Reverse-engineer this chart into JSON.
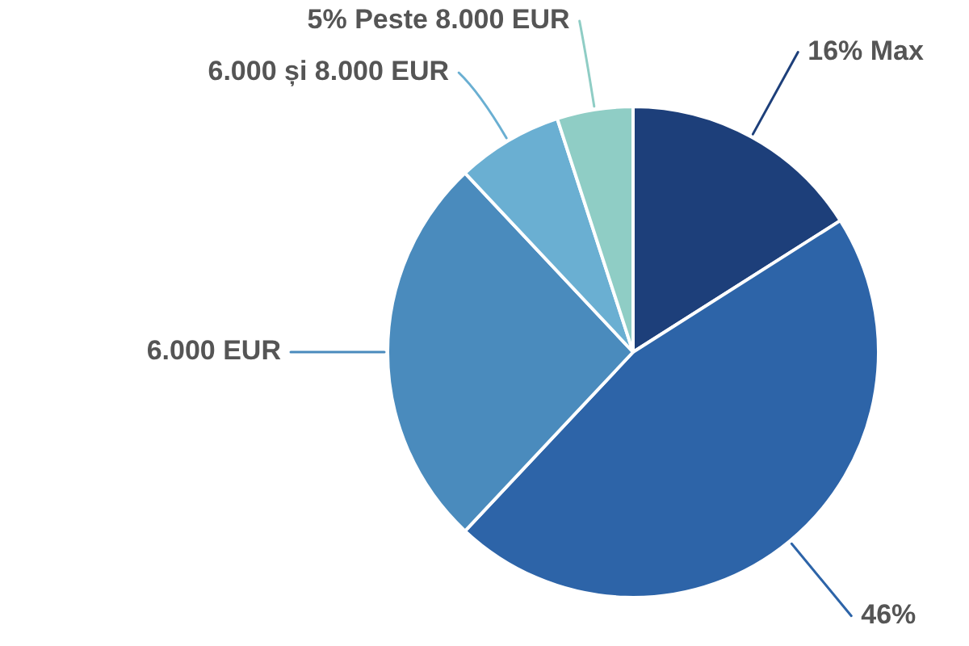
{
  "chart_data": {
    "type": "pie",
    "categories": [
      "Max",
      null,
      "6.000 EUR",
      "6.000 și 8.000 EUR",
      "Peste 8.000 EUR"
    ],
    "values": [
      16,
      46,
      26,
      7,
      5
    ],
    "colors": [
      "#1d3f7a",
      "#2d64a8",
      "#4a8bbd",
      "#6aafd2",
      "#8fcdc5"
    ],
    "value_labels": [
      "16%",
      "46%",
      null,
      null,
      "5%"
    ]
  }
}
